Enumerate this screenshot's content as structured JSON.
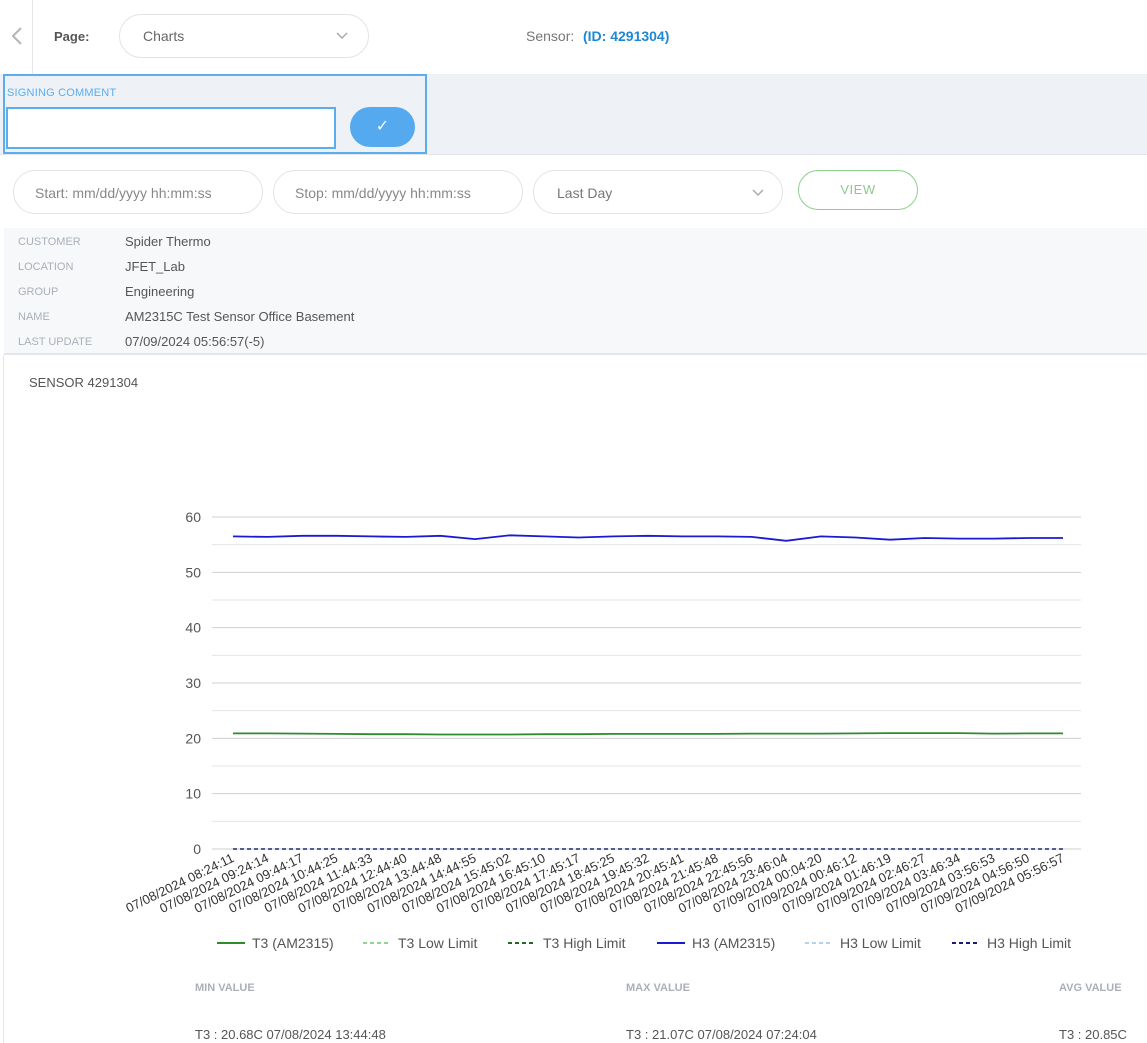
{
  "header": {
    "page_label": "Page:",
    "page_value": "Charts",
    "sensor_label": "Sensor:",
    "sensor_id": "(ID: 4291304)"
  },
  "signing": {
    "title": "SIGNING COMMENT",
    "input_value": "",
    "confirm_label": "✓"
  },
  "filters": {
    "start_placeholder": "Start: mm/dd/yyyy hh:mm:ss",
    "stop_placeholder": "Stop: mm/dd/yyyy hh:mm:ss",
    "range_value": "Last Day",
    "view_label": "VIEW"
  },
  "info": [
    {
      "key": "CUSTOMER",
      "value": "Spider Thermo"
    },
    {
      "key": "LOCATION",
      "value": "JFET_Lab"
    },
    {
      "key": "GROUP",
      "value": "Engineering"
    },
    {
      "key": "NAME",
      "value": "AM2315C Test Sensor Office Basement"
    },
    {
      "key": "LAST UPDATE",
      "value": "07/09/2024 05:56:57(-5)"
    }
  ],
  "chart_title": "SENSOR 4291304",
  "chart_data": {
    "type": "line",
    "title": "SENSOR 4291304",
    "ylim": [
      0,
      60
    ],
    "yticks": [
      0,
      10,
      20,
      30,
      40,
      50,
      60
    ],
    "grid": true,
    "legend_position": "bottom",
    "categories": [
      "07/08/2024 08:24:11",
      "07/08/2024 09:24:14",
      "07/08/2024 09:44:17",
      "07/08/2024 10:44:25",
      "07/08/2024 11:44:33",
      "07/08/2024 12:44:40",
      "07/08/2024 13:44:48",
      "07/08/2024 14:44:55",
      "07/08/2024 15:45:02",
      "07/08/2024 16:45:10",
      "07/08/2024 17:45:17",
      "07/08/2024 18:45:25",
      "07/08/2024 19:45:32",
      "07/08/2024 20:45:41",
      "07/08/2024 21:45:48",
      "07/08/2024 22:45:56",
      "07/08/2024 23:46:04",
      "07/09/2024 00:04:20",
      "07/09/2024 00:46:12",
      "07/09/2024 01:46:19",
      "07/09/2024 02:46:27",
      "07/09/2024 03:46:34",
      "07/09/2024 03:56:53",
      "07/09/2024 04:56:50",
      "07/09/2024 05:56:57"
    ],
    "series": [
      {
        "name": "T3 (AM2315)",
        "color": "#2e8b2e",
        "dash": "solid",
        "values": [
          20.9,
          20.9,
          20.85,
          20.8,
          20.75,
          20.75,
          20.7,
          20.7,
          20.7,
          20.75,
          20.75,
          20.8,
          20.8,
          20.8,
          20.8,
          20.85,
          20.85,
          20.85,
          20.9,
          20.95,
          20.95,
          20.95,
          20.85,
          20.9,
          20.9
        ]
      },
      {
        "name": "T3 Low Limit",
        "color": "#8fd88f",
        "dash": "dashed",
        "values": [
          0,
          0,
          0,
          0,
          0,
          0,
          0,
          0,
          0,
          0,
          0,
          0,
          0,
          0,
          0,
          0,
          0,
          0,
          0,
          0,
          0,
          0,
          0,
          0,
          0
        ]
      },
      {
        "name": "T3 High Limit",
        "color": "#1f6b1f",
        "dash": "dashed",
        "values": [
          0,
          0,
          0,
          0,
          0,
          0,
          0,
          0,
          0,
          0,
          0,
          0,
          0,
          0,
          0,
          0,
          0,
          0,
          0,
          0,
          0,
          0,
          0,
          0,
          0
        ]
      },
      {
        "name": "H3 (AM2315)",
        "color": "#1a1ad6",
        "dash": "solid",
        "values": [
          56.5,
          56.4,
          56.6,
          56.6,
          56.5,
          56.4,
          56.6,
          56.0,
          56.7,
          56.5,
          56.3,
          56.5,
          56.6,
          56.5,
          56.5,
          56.4,
          55.7,
          56.5,
          56.3,
          55.9,
          56.2,
          56.1,
          56.1,
          56.2,
          56.2
        ]
      },
      {
        "name": "H3 Low Limit",
        "color": "#b5d3ea",
        "dash": "dashed",
        "values": [
          0,
          0,
          0,
          0,
          0,
          0,
          0,
          0,
          0,
          0,
          0,
          0,
          0,
          0,
          0,
          0,
          0,
          0,
          0,
          0,
          0,
          0,
          0,
          0,
          0
        ]
      },
      {
        "name": "H3 High Limit",
        "color": "#1a1a7a",
        "dash": "dashed",
        "values": [
          0,
          0,
          0,
          0,
          0,
          0,
          0,
          0,
          0,
          0,
          0,
          0,
          0,
          0,
          0,
          0,
          0,
          0,
          0,
          0,
          0,
          0,
          0,
          0,
          0
        ]
      }
    ]
  },
  "stats": {
    "min_label": "MIN VALUE",
    "max_label": "MAX VALUE",
    "avg_label": "AVG VALUE",
    "min_value": "T3 : 20.68C 07/08/2024 13:44:48",
    "max_value": "T3 : 21.07C 07/08/2024 07:24:04",
    "avg_value": "T3 : 20.85C"
  }
}
